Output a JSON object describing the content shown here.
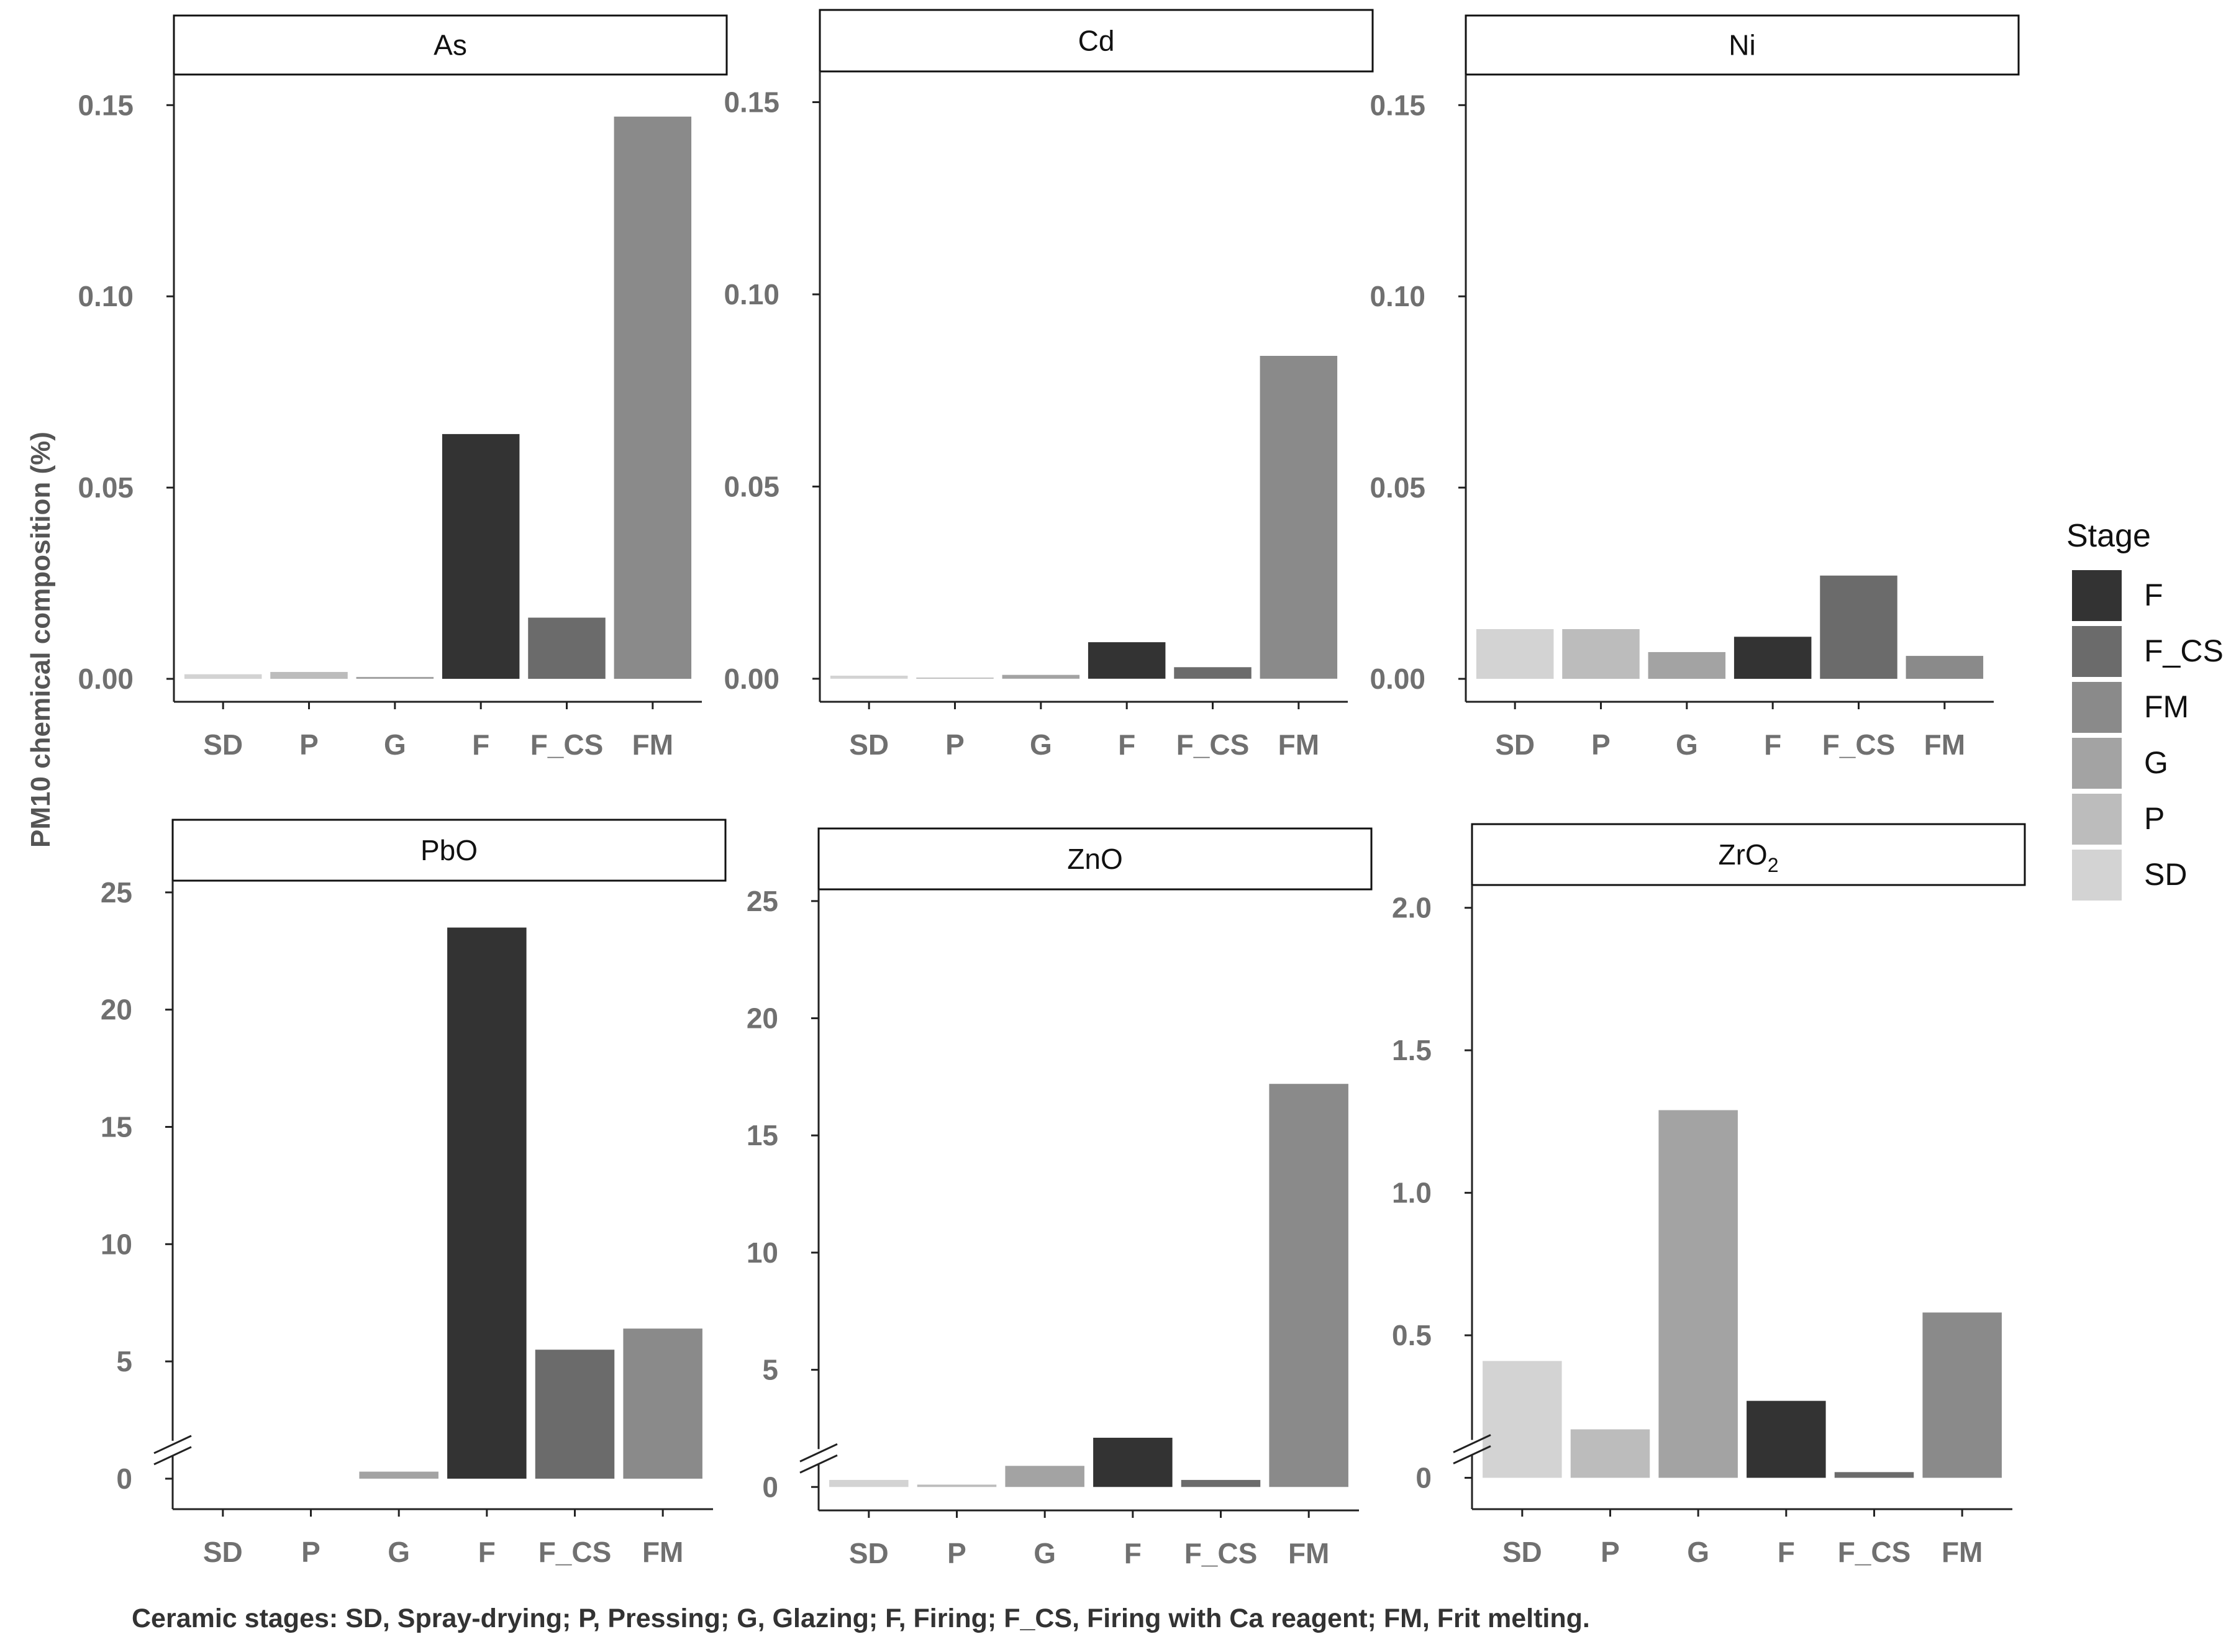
{
  "y_axis_title": "PM10 chemical composition (%)",
  "caption": "Ceramic stages: SD, Spray-drying; P, Pressing; G, Glazing; F, Firing; F_CS, Firing with Ca reagent; FM, Frit melting.",
  "legend": {
    "title": "Stage",
    "entries": [
      {
        "label": "F",
        "color": "#333333"
      },
      {
        "label": "F_CS",
        "color": "#6b6b6b"
      },
      {
        "label": "FM",
        "color": "#8a8a8a"
      },
      {
        "label": "G",
        "color": "#a3a3a3"
      },
      {
        "label": "P",
        "color": "#bcbcbc"
      },
      {
        "label": "SD",
        "color": "#d3d3d3"
      }
    ]
  },
  "colors": {
    "SD": "#d3d3d3",
    "P": "#bcbcbc",
    "G": "#a3a3a3",
    "F": "#333333",
    "F_CS": "#6b6b6b",
    "FM": "#8a8a8a"
  },
  "chart_data": [
    {
      "type": "bar",
      "title": "As",
      "categories": [
        "SD",
        "P",
        "G",
        "F",
        "F_CS",
        "FM"
      ],
      "values": [
        0.0012,
        0.0018,
        0.0005,
        0.064,
        0.016,
        0.147
      ],
      "ylim": [
        -0.006,
        0.158
      ],
      "yticks": [
        0.0,
        0.05,
        0.1,
        0.15
      ],
      "ytick_labels": [
        "0.00",
        "0.05",
        "0.10",
        "0.15"
      ],
      "axis_break": false
    },
    {
      "type": "bar",
      "title": "Cd",
      "categories": [
        "SD",
        "P",
        "G",
        "F",
        "F_CS",
        "FM"
      ],
      "values": [
        0.0008,
        0.0003,
        0.001,
        0.0095,
        0.003,
        0.084
      ],
      "ylim": [
        -0.006,
        0.158
      ],
      "yticks": [
        0.0,
        0.05,
        0.1,
        0.15
      ],
      "ytick_labels": [
        "0.00",
        "0.05",
        "0.10",
        "0.15"
      ],
      "axis_break": false
    },
    {
      "type": "bar",
      "title": "Ni",
      "categories": [
        "SD",
        "P",
        "G",
        "F",
        "F_CS",
        "FM"
      ],
      "values": [
        0.013,
        0.013,
        0.007,
        0.011,
        0.027,
        0.006
      ],
      "ylim": [
        -0.006,
        0.158
      ],
      "yticks": [
        0.0,
        0.05,
        0.1,
        0.15
      ],
      "ytick_labels": [
        "0.00",
        "0.05",
        "0.10",
        "0.15"
      ],
      "axis_break": false
    },
    {
      "type": "bar",
      "title": "PbO",
      "categories": [
        "SD",
        "P",
        "G",
        "F",
        "F_CS",
        "FM"
      ],
      "values": [
        0.0,
        0.0,
        0.3,
        23.5,
        5.5,
        6.4
      ],
      "ylim": [
        -1.3,
        25.5
      ],
      "yticks": [
        0,
        5,
        10,
        15,
        20,
        25
      ],
      "ytick_labels": [
        "0",
        "5",
        "10",
        "15",
        "20",
        "25"
      ],
      "axis_break": true
    },
    {
      "type": "bar",
      "title": "ZnO",
      "categories": [
        "SD",
        "P",
        "G",
        "F",
        "F_CS",
        "FM"
      ],
      "values": [
        0.3,
        0.1,
        0.9,
        2.1,
        0.3,
        17.2
      ],
      "ylim": [
        -1.0,
        25.5
      ],
      "yticks": [
        0,
        5,
        10,
        15,
        20,
        25
      ],
      "ytick_labels": [
        "0",
        "5",
        "10",
        "15",
        "20",
        "25"
      ],
      "axis_break": true
    },
    {
      "type": "bar",
      "title": "ZrO",
      "title_subscript": "2",
      "categories": [
        "SD",
        "P",
        "G",
        "F",
        "F_CS",
        "FM"
      ],
      "values": [
        0.41,
        0.17,
        1.29,
        0.27,
        0.02,
        0.58
      ],
      "ylim": [
        -0.11,
        2.08
      ],
      "yticks": [
        0,
        0.5,
        1.0,
        1.5,
        2.0
      ],
      "ytick_labels": [
        "0",
        "0.5",
        "1.0",
        "1.5",
        "2.0"
      ],
      "axis_break": true
    }
  ]
}
